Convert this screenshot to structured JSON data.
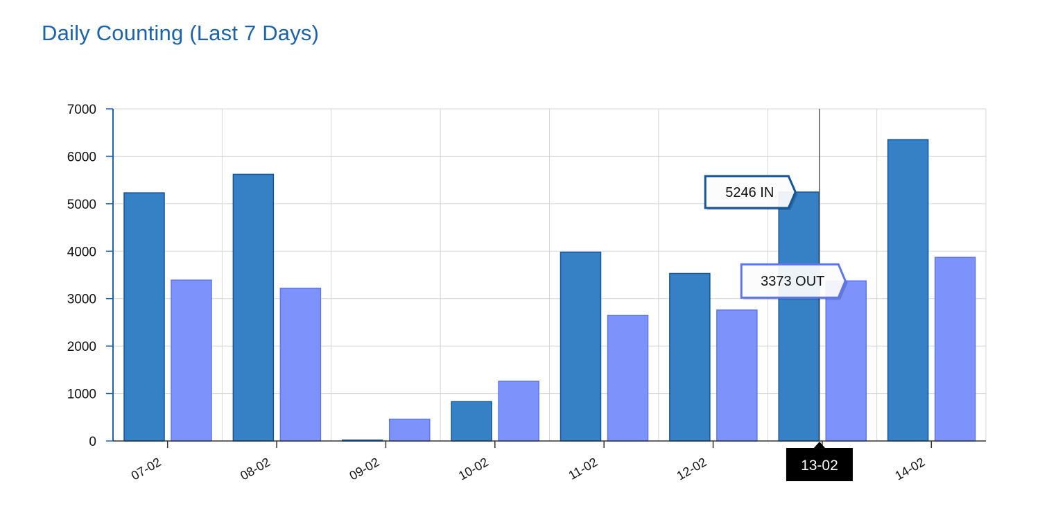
{
  "header": {
    "title": "Daily Counting (Last 7 Days)"
  },
  "colors": {
    "title": "#1a63ad",
    "in_fill": "#3680c6",
    "in_stroke": "#12559b",
    "out_fill": "#7d93fb",
    "out_stroke": "#5d76ef",
    "grid": "#d7d7d7",
    "axis": "#1a63ad",
    "crosshair": "#555555",
    "crosshair_label_bg": "#000000"
  },
  "chart_data": {
    "type": "bar",
    "title": "Daily Counting (Last 7 Days)",
    "xlabel": "",
    "ylabel": "",
    "categories": [
      "07-02",
      "08-02",
      "09-02",
      "10-02",
      "11-02",
      "12-02",
      "13-02",
      "14-02"
    ],
    "series": [
      {
        "name": "IN",
        "values": [
          5230,
          5620,
          20,
          830,
          3980,
          3530,
          5246,
          6350
        ]
      },
      {
        "name": "OUT",
        "values": [
          3390,
          3220,
          460,
          1260,
          2650,
          2760,
          3373,
          3870
        ]
      }
    ],
    "ylim": [
      0,
      7000
    ],
    "yticks": [
      "0",
      "1000",
      "2000",
      "3000",
      "4000",
      "5000",
      "6000",
      "7000"
    ],
    "grid": true,
    "legend": "none",
    "tooltips": {
      "category": "13-02",
      "in_label": "5246 IN",
      "out_label": "3373 OUT"
    }
  }
}
